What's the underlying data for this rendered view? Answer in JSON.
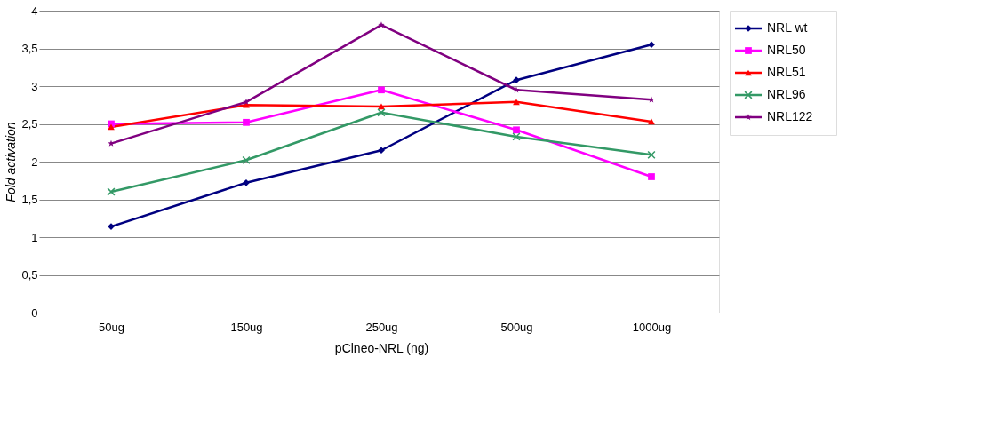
{
  "chart_data": {
    "type": "line",
    "xlabel": "pClneo-NRL (ng)",
    "ylabel": "Fold activation",
    "categories": [
      "50ug",
      "150ug",
      "250ug",
      "500ug",
      "1000ug"
    ],
    "series": [
      {
        "name": "NRL wt",
        "color": "#000080",
        "marker": "diamond",
        "values": [
          1.14,
          1.72,
          2.15,
          3.08,
          3.55
        ]
      },
      {
        "name": "NRL50",
        "color": "#ff00ff",
        "marker": "square",
        "values": [
          2.5,
          2.52,
          2.95,
          2.42,
          1.8
        ]
      },
      {
        "name": "NRL51",
        "color": "#ff0000",
        "marker": "triangle",
        "values": [
          2.46,
          2.75,
          2.73,
          2.79,
          2.53
        ]
      },
      {
        "name": "NRL96",
        "color": "#339966",
        "marker": "cross",
        "values": [
          1.6,
          2.02,
          2.65,
          2.33,
          2.09
        ]
      },
      {
        "name": "NRL122",
        "color": "#800080",
        "marker": "star",
        "values": [
          2.24,
          2.79,
          3.81,
          2.95,
          2.82
        ]
      }
    ],
    "ylim": [
      0,
      4
    ],
    "yticks": [
      0,
      {
        "value": 0.5,
        "label": "0,5"
      },
      1,
      {
        "value": 1.5,
        "label": "1,5"
      },
      2,
      {
        "value": 2.5,
        "label": "2,5"
      },
      3,
      {
        "value": 3.5,
        "label": "3,5"
      },
      4
    ],
    "grid": "y",
    "legend": "right"
  }
}
